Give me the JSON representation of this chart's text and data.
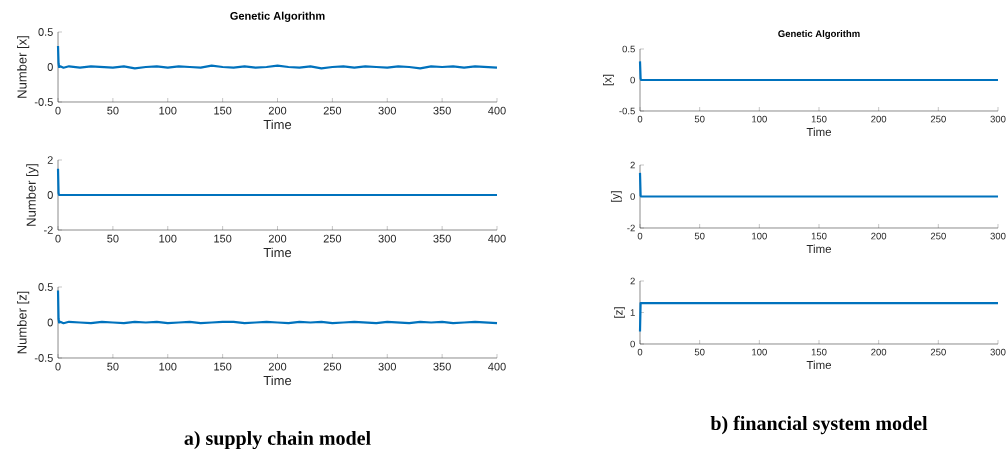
{
  "chart_data": [
    {
      "type": "line",
      "title": "Genetic Algorithm",
      "xlabel": "Time",
      "ylabel": "Number [x]",
      "color": "#0072bd",
      "xlim": [
        0,
        400
      ],
      "ylim": [
        -0.5,
        0.5
      ],
      "xticks": [
        0,
        50,
        100,
        150,
        200,
        250,
        300,
        350,
        400
      ],
      "yticks": [
        -0.5,
        0,
        0.5
      ],
      "x": [
        0,
        0.5,
        1,
        2,
        5,
        10,
        20,
        30,
        40,
        50,
        60,
        70,
        80,
        90,
        100,
        110,
        120,
        130,
        140,
        150,
        160,
        170,
        180,
        190,
        200,
        210,
        220,
        230,
        240,
        250,
        260,
        270,
        280,
        290,
        300,
        310,
        320,
        330,
        340,
        350,
        360,
        370,
        380,
        390,
        400
      ],
      "values": [
        0.3,
        0.05,
        0,
        0.01,
        -0.01,
        0.01,
        -0.01,
        0.01,
        0,
        -0.01,
        0.01,
        -0.02,
        0,
        0.01,
        -0.01,
        0.01,
        0,
        -0.01,
        0.02,
        0,
        -0.01,
        0.01,
        -0.01,
        0,
        0.02,
        0,
        -0.01,
        0.01,
        -0.02,
        0,
        0.01,
        -0.01,
        0.01,
        0,
        -0.01,
        0.01,
        0,
        -0.02,
        0.01,
        0,
        0.01,
        -0.01,
        0.01,
        0,
        -0.01
      ]
    },
    {
      "type": "line",
      "xlabel": "Time",
      "ylabel": "Number [y]",
      "color": "#0072bd",
      "xlim": [
        0,
        400
      ],
      "ylim": [
        -2,
        2
      ],
      "xticks": [
        0,
        50,
        100,
        150,
        200,
        250,
        300,
        350,
        400
      ],
      "yticks": [
        -2,
        0,
        2
      ],
      "x": [
        0,
        0.5,
        1,
        50,
        100,
        150,
        200,
        250,
        300,
        350,
        400
      ],
      "values": [
        1.5,
        0.1,
        0,
        0,
        0,
        0,
        0,
        0,
        0,
        0,
        0
      ]
    },
    {
      "type": "line",
      "xlabel": "Time",
      "ylabel": "Number [z]",
      "color": "#0072bd",
      "xlim": [
        0,
        400
      ],
      "ylim": [
        -0.5,
        0.5
      ],
      "xticks": [
        0,
        50,
        100,
        150,
        200,
        250,
        300,
        350,
        400
      ],
      "yticks": [
        -0.5,
        0,
        0.5
      ],
      "annotations": [
        "a) supply chain model"
      ],
      "x": [
        0,
        0.5,
        1,
        2,
        5,
        10,
        20,
        30,
        40,
        50,
        60,
        70,
        80,
        90,
        100,
        110,
        120,
        130,
        140,
        150,
        160,
        170,
        180,
        190,
        200,
        210,
        220,
        230,
        240,
        250,
        260,
        270,
        280,
        290,
        300,
        310,
        320,
        330,
        340,
        350,
        360,
        370,
        380,
        390,
        400
      ],
      "values": [
        0.45,
        0.05,
        0,
        0.01,
        -0.01,
        0.01,
        0,
        -0.01,
        0.01,
        0,
        -0.01,
        0.01,
        0,
        0.01,
        -0.01,
        0,
        0.01,
        -0.01,
        0,
        0.01,
        0.01,
        -0.01,
        0,
        0.01,
        0,
        -0.01,
        0.01,
        0,
        0.01,
        -0.01,
        0,
        0.01,
        0,
        -0.01,
        0.01,
        0,
        -0.01,
        0.01,
        0,
        0.01,
        -0.01,
        0,
        0.01,
        0,
        -0.01
      ]
    },
    {
      "type": "line",
      "title": "Genetic Algorithm",
      "xlabel": "Time",
      "ylabel": "[x]",
      "color": "#0072bd",
      "xlim": [
        0,
        300
      ],
      "ylim": [
        -0.5,
        0.5
      ],
      "xticks": [
        0,
        50,
        100,
        150,
        200,
        250,
        300
      ],
      "yticks": [
        -0.5,
        0,
        0.5
      ],
      "x": [
        0,
        0.5,
        1,
        50,
        100,
        150,
        200,
        250,
        300
      ],
      "values": [
        0.3,
        0.02,
        0,
        0,
        0,
        0,
        0,
        0,
        0
      ]
    },
    {
      "type": "line",
      "xlabel": "Time",
      "ylabel": "[y]",
      "color": "#0072bd",
      "xlim": [
        0,
        300
      ],
      "ylim": [
        -2,
        2
      ],
      "xticks": [
        0,
        50,
        100,
        150,
        200,
        250,
        300
      ],
      "yticks": [
        -2,
        0,
        2
      ],
      "x": [
        0,
        0.5,
        1,
        50,
        100,
        150,
        200,
        250,
        300
      ],
      "values": [
        1.5,
        0.05,
        0,
        0,
        0,
        0,
        0,
        0,
        0
      ]
    },
    {
      "type": "line",
      "xlabel": "Time",
      "ylabel": "[z]",
      "color": "#0072bd",
      "xlim": [
        0,
        300
      ],
      "ylim": [
        0,
        2
      ],
      "xticks": [
        0,
        50,
        100,
        150,
        200,
        250,
        300
      ],
      "yticks": [
        0,
        1,
        2
      ],
      "annotations": [
        "b) financial system model"
      ],
      "x": [
        0,
        0.5,
        1,
        50,
        100,
        150,
        200,
        250,
        300
      ],
      "values": [
        0.4,
        1.3,
        1.3,
        1.3,
        1.3,
        1.3,
        1.3,
        1.3,
        1.3
      ]
    }
  ]
}
